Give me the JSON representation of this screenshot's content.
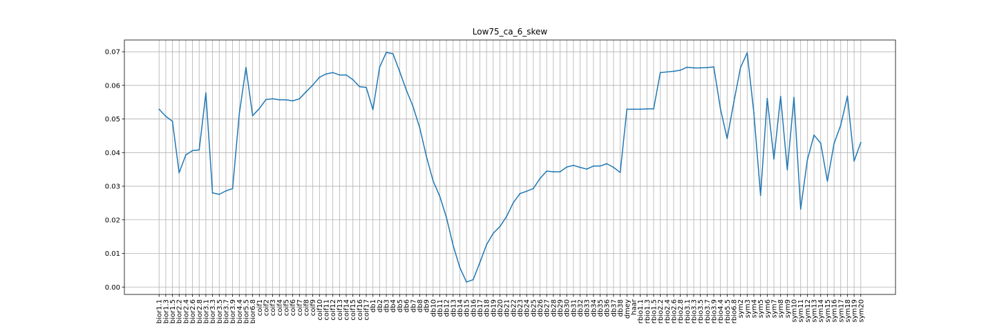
{
  "chart_data": {
    "type": "line",
    "title": "Low75_ca_6_skew",
    "xlabel": "",
    "ylabel": "",
    "ylim": [
      -0.0022,
      0.0735
    ],
    "yticks": [
      0.0,
      0.01,
      0.02,
      0.03,
      0.04,
      0.05,
      0.06,
      0.07
    ],
    "ytick_labels": [
      "0.00",
      "0.01",
      "0.02",
      "0.03",
      "0.04",
      "0.05",
      "0.06",
      "0.07"
    ],
    "grid": true,
    "line_color": "#1f77b4",
    "categories": [
      "bior1.1",
      "bior1.3",
      "bior1.5",
      "bior2.2",
      "bior2.4",
      "bior2.6",
      "bior2.8",
      "bior3.1",
      "bior3.3",
      "bior3.5",
      "bior3.7",
      "bior3.9",
      "bior4.4",
      "bior5.5",
      "bior6.8",
      "coif1",
      "coif2",
      "coif3",
      "coif4",
      "coif5",
      "coif6",
      "coif7",
      "coif8",
      "coif9",
      "coif10",
      "coif11",
      "coif12",
      "coif13",
      "coif14",
      "coif15",
      "coif16",
      "coif17",
      "db1",
      "db2",
      "db3",
      "db4",
      "db5",
      "db6",
      "db7",
      "db8",
      "db9",
      "db10",
      "db11",
      "db12",
      "db13",
      "db14",
      "db15",
      "db16",
      "db17",
      "db18",
      "db19",
      "db20",
      "db21",
      "db22",
      "db23",
      "db24",
      "db25",
      "db26",
      "db27",
      "db28",
      "db29",
      "db30",
      "db31",
      "db32",
      "db33",
      "db34",
      "db35",
      "db36",
      "db37",
      "db38",
      "dmey",
      "haar",
      "rbio1.1",
      "rbio1.3",
      "rbio1.5",
      "rbio2.2",
      "rbio2.4",
      "rbio2.6",
      "rbio2.8",
      "rbio3.1",
      "rbio3.3",
      "rbio3.5",
      "rbio3.7",
      "rbio3.9",
      "rbio4.4",
      "rbio5.5",
      "rbio6.8",
      "sym2",
      "sym3",
      "sym4",
      "sym5",
      "sym6",
      "sym7",
      "sym8",
      "sym9",
      "sym10",
      "sym11",
      "sym12",
      "sym13",
      "sym14",
      "sym15",
      "sym16",
      "sym17",
      "sym18",
      "sym19",
      "sym20"
    ],
    "series": [
      {
        "values": [
          0.0529,
          0.0508,
          0.0493,
          0.034,
          0.0393,
          0.0406,
          0.0408,
          0.0577,
          0.028,
          0.0276,
          0.0286,
          0.0293,
          0.0515,
          0.0653,
          0.051,
          0.0531,
          0.0558,
          0.056,
          0.0557,
          0.0557,
          0.0554,
          0.056,
          0.0581,
          0.0601,
          0.0624,
          0.0634,
          0.0638,
          0.0631,
          0.0631,
          0.0617,
          0.0596,
          0.0594,
          0.0528,
          0.0654,
          0.0698,
          0.0694,
          0.0641,
          0.0586,
          0.0537,
          0.0474,
          0.0389,
          0.0316,
          0.027,
          0.0207,
          0.0124,
          0.0058,
          0.0015,
          0.0022,
          0.0073,
          0.0126,
          0.016,
          0.018,
          0.021,
          0.0251,
          0.0278,
          0.0285,
          0.0293,
          0.0323,
          0.0345,
          0.0343,
          0.0343,
          0.0357,
          0.0362,
          0.0356,
          0.0351,
          0.036,
          0.036,
          0.0367,
          0.0356,
          0.0341,
          0.0529,
          0.0529,
          0.0529,
          0.053,
          0.053,
          0.0638,
          0.064,
          0.0642,
          0.0645,
          0.0654,
          0.0652,
          0.0652,
          0.0653,
          0.0655,
          0.053,
          0.0442,
          0.055,
          0.0653,
          0.0697,
          0.0518,
          0.0273,
          0.0561,
          0.0381,
          0.0567,
          0.0349,
          0.0564,
          0.0232,
          0.0378,
          0.0452,
          0.0428,
          0.0315,
          0.0427,
          0.0482,
          0.0568,
          0.0375,
          0.043
        ]
      }
    ]
  }
}
